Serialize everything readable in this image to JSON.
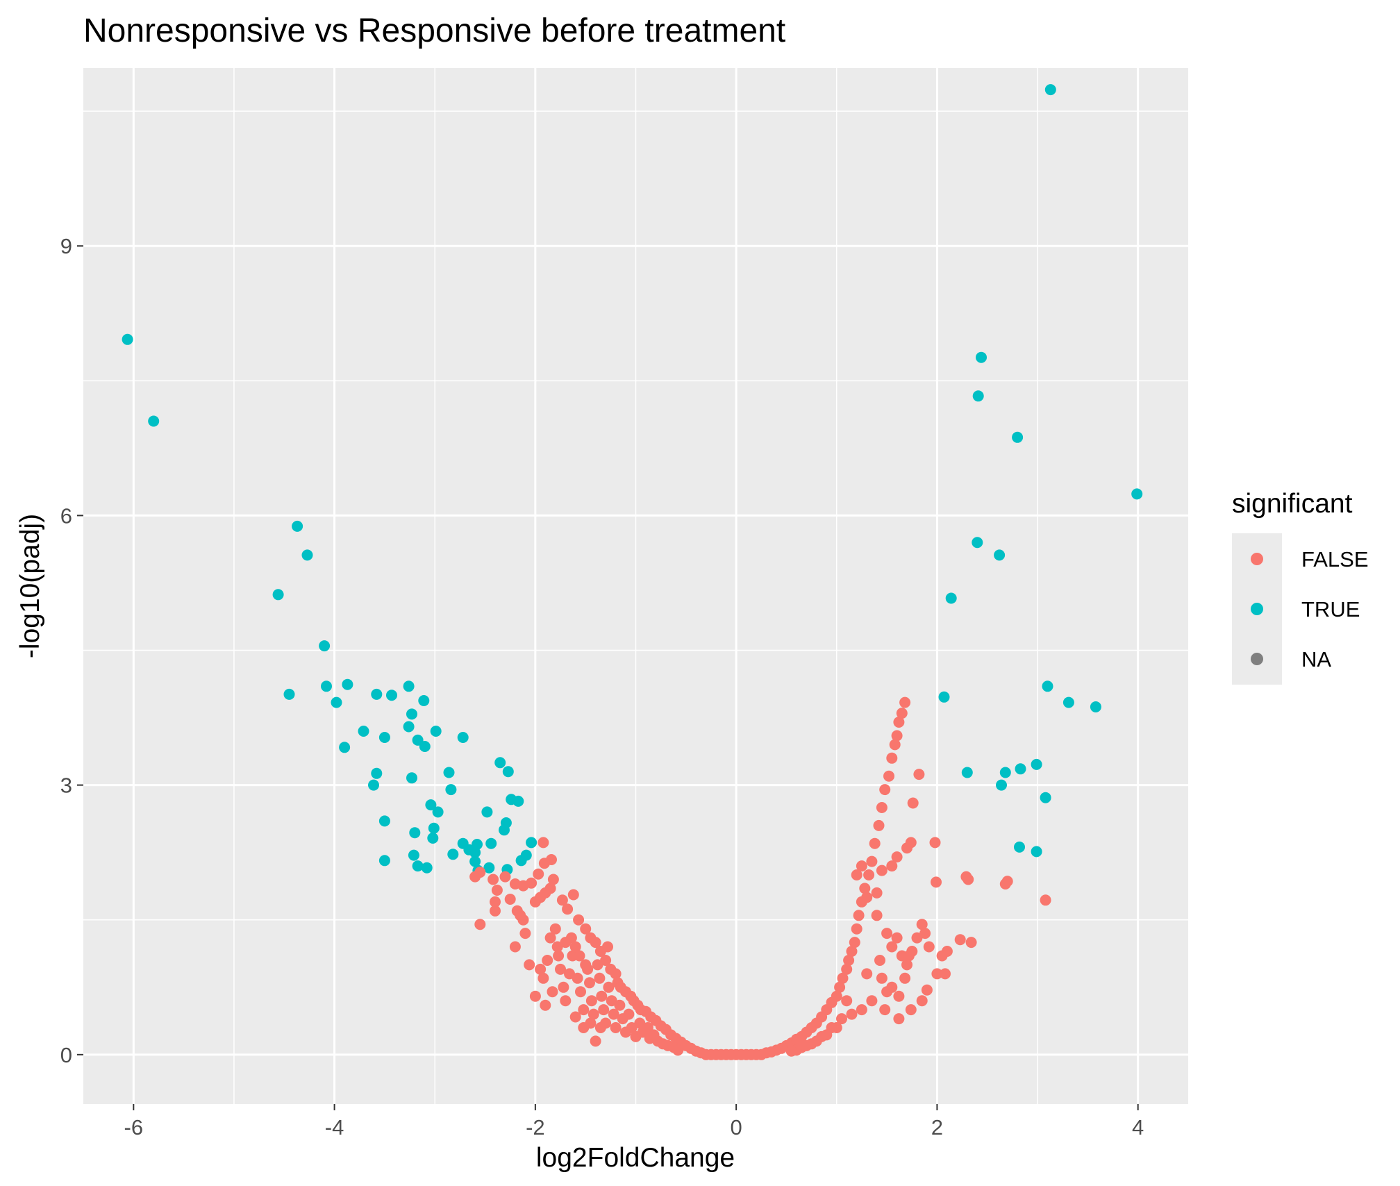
{
  "chart_data": {
    "type": "scatter",
    "title": "Nonresponsive vs Responsive before treatment",
    "xlabel": "log2FoldChange",
    "ylabel": "-log10(padj)",
    "xlim": [
      -6.5,
      4.5
    ],
    "ylim": [
      -0.55,
      10.98
    ],
    "x_ticks": [
      -6,
      -4,
      -2,
      0,
      2,
      4
    ],
    "y_ticks": [
      0,
      3,
      6,
      9
    ],
    "x_tick_labels": [
      "-6",
      "-4",
      "-2",
      "0",
      "2",
      "4"
    ],
    "y_tick_labels": [
      "0",
      "3",
      "6",
      "9"
    ],
    "grid": true,
    "legend": {
      "title": "significant",
      "position": "right",
      "entries": [
        {
          "label": "FALSE",
          "color": "#F8766D"
        },
        {
          "label": "TRUE",
          "color": "#00BFC4"
        },
        {
          "label": "NA",
          "color": "#7F7F7F"
        }
      ]
    },
    "series": [
      {
        "name": "TRUE",
        "color": "#00BFC4",
        "points": [
          [
            -6.06,
            7.96
          ],
          [
            -5.8,
            7.05
          ],
          [
            -4.37,
            5.88
          ],
          [
            -4.27,
            5.56
          ],
          [
            -4.56,
            5.12
          ],
          [
            -4.1,
            4.55
          ],
          [
            -4.08,
            4.1
          ],
          [
            -3.87,
            4.12
          ],
          [
            -3.98,
            3.92
          ],
          [
            -4.45,
            4.01
          ],
          [
            -3.58,
            4.01
          ],
          [
            -3.43,
            4.0
          ],
          [
            -3.26,
            4.1
          ],
          [
            -3.11,
            3.94
          ],
          [
            -3.23,
            3.79
          ],
          [
            -3.26,
            3.65
          ],
          [
            -3.71,
            3.6
          ],
          [
            -3.5,
            3.53
          ],
          [
            -3.17,
            3.5
          ],
          [
            -3.1,
            3.43
          ],
          [
            -2.99,
            3.6
          ],
          [
            -2.72,
            3.53
          ],
          [
            -3.9,
            3.42
          ],
          [
            -3.58,
            3.13
          ],
          [
            -3.23,
            3.08
          ],
          [
            -3.61,
            3.0
          ],
          [
            -2.86,
            3.14
          ],
          [
            -2.84,
            2.95
          ],
          [
            -3.04,
            2.78
          ],
          [
            -2.97,
            2.7
          ],
          [
            -3.5,
            2.6
          ],
          [
            -3.2,
            2.47
          ],
          [
            -3.01,
            2.52
          ],
          [
            -3.02,
            2.41
          ],
          [
            -3.5,
            2.16
          ],
          [
            -3.21,
            2.22
          ],
          [
            -3.17,
            2.1
          ],
          [
            -3.08,
            2.08
          ],
          [
            -2.82,
            2.23
          ],
          [
            -2.72,
            2.35
          ],
          [
            -2.66,
            2.28
          ],
          [
            -2.6,
            2.25
          ],
          [
            -2.58,
            2.34
          ],
          [
            -2.6,
            2.15
          ],
          [
            -2.57,
            2.05
          ],
          [
            -2.46,
            2.08
          ],
          [
            -2.44,
            2.35
          ],
          [
            -2.35,
            3.25
          ],
          [
            -2.27,
            3.15
          ],
          [
            -2.24,
            2.84
          ],
          [
            -2.17,
            2.82
          ],
          [
            -2.48,
            2.7
          ],
          [
            -2.29,
            2.58
          ],
          [
            -2.31,
            2.5
          ],
          [
            -2.14,
            2.16
          ],
          [
            -2.09,
            2.22
          ],
          [
            -2.04,
            2.36
          ],
          [
            -2.28,
            2.06
          ],
          [
            3.13,
            10.74
          ],
          [
            2.44,
            7.76
          ],
          [
            2.41,
            7.33
          ],
          [
            2.8,
            6.87
          ],
          [
            3.99,
            6.24
          ],
          [
            2.4,
            5.7
          ],
          [
            2.62,
            5.56
          ],
          [
            2.14,
            5.08
          ],
          [
            2.07,
            3.98
          ],
          [
            3.1,
            4.1
          ],
          [
            3.31,
            3.92
          ],
          [
            3.58,
            3.87
          ],
          [
            2.3,
            3.14
          ],
          [
            2.68,
            3.14
          ],
          [
            2.83,
            3.18
          ],
          [
            2.99,
            3.23
          ],
          [
            2.64,
            3.0
          ],
          [
            3.08,
            2.86
          ],
          [
            2.82,
            2.31
          ],
          [
            2.99,
            2.26
          ]
        ]
      },
      {
        "name": "FALSE",
        "color": "#F8766D",
        "points": [
          [
            -1.92,
            2.36
          ],
          [
            -1.84,
            2.17
          ],
          [
            -1.91,
            2.13
          ],
          [
            -1.97,
            2.01
          ],
          [
            -2.04,
            1.91
          ],
          [
            -2.12,
            1.88
          ],
          [
            -2.2,
            1.9
          ],
          [
            -2.3,
            1.98
          ],
          [
            -2.38,
            1.83
          ],
          [
            -2.42,
            1.95
          ],
          [
            -2.55,
            2.03
          ],
          [
            -2.6,
            1.98
          ],
          [
            -2.55,
            1.45
          ],
          [
            -2.4,
            1.6
          ],
          [
            -2.4,
            1.7
          ],
          [
            -2.25,
            1.73
          ],
          [
            -2.18,
            1.6
          ],
          [
            -2.12,
            1.5
          ],
          [
            -2.0,
            1.7
          ],
          [
            -1.95,
            1.75
          ],
          [
            -1.9,
            1.8
          ],
          [
            -1.85,
            1.85
          ],
          [
            -1.82,
            1.95
          ],
          [
            -1.73,
            1.72
          ],
          [
            -1.68,
            1.62
          ],
          [
            -1.62,
            1.78
          ],
          [
            -1.57,
            1.5
          ],
          [
            -1.5,
            1.4
          ],
          [
            -1.45,
            1.3
          ],
          [
            -1.4,
            1.25
          ],
          [
            -1.35,
            1.15
          ],
          [
            -1.3,
            1.05
          ],
          [
            -1.28,
            1.2
          ],
          [
            -1.25,
            0.95
          ],
          [
            -1.2,
            0.9
          ],
          [
            -1.18,
            0.8
          ],
          [
            -1.15,
            0.75
          ],
          [
            -1.1,
            0.7
          ],
          [
            -1.05,
            0.65
          ],
          [
            -1.02,
            0.6
          ],
          [
            -0.98,
            0.55
          ],
          [
            -0.95,
            0.5
          ],
          [
            -0.9,
            0.48
          ],
          [
            -0.85,
            0.42
          ],
          [
            -0.8,
            0.38
          ],
          [
            -0.75,
            0.32
          ],
          [
            -0.7,
            0.28
          ],
          [
            -0.65,
            0.22
          ],
          [
            -0.6,
            0.18
          ],
          [
            -0.55,
            0.14
          ],
          [
            -0.5,
            0.1
          ],
          [
            -0.45,
            0.07
          ],
          [
            -0.4,
            0.04
          ],
          [
            -0.35,
            0.02
          ],
          [
            -2.2,
            1.2
          ],
          [
            -2.06,
            1.0
          ],
          [
            -2.0,
            0.65
          ],
          [
            -1.92,
            0.85
          ],
          [
            -1.88,
            1.05
          ],
          [
            -1.85,
            1.3
          ],
          [
            -1.8,
            1.4
          ],
          [
            -1.77,
            1.1
          ],
          [
            -1.75,
            0.95
          ],
          [
            -1.72,
            0.75
          ],
          [
            -1.7,
            0.6
          ],
          [
            -1.66,
            0.9
          ],
          [
            -1.63,
            1.1
          ],
          [
            -1.6,
            1.2
          ],
          [
            -1.58,
            0.85
          ],
          [
            -1.55,
            0.7
          ],
          [
            -1.52,
            0.5
          ],
          [
            -1.48,
            0.95
          ],
          [
            -1.46,
            0.8
          ],
          [
            -1.44,
            0.6
          ],
          [
            -1.42,
            0.45
          ],
          [
            -1.38,
            1.0
          ],
          [
            -1.36,
            0.85
          ],
          [
            -1.34,
            0.65
          ],
          [
            -1.32,
            0.5
          ],
          [
            -1.3,
            0.35
          ],
          [
            -1.27,
            0.75
          ],
          [
            -1.24,
            0.6
          ],
          [
            -1.22,
            0.45
          ],
          [
            -1.2,
            0.3
          ],
          [
            -1.16,
            0.55
          ],
          [
            -1.13,
            0.4
          ],
          [
            -1.1,
            0.25
          ],
          [
            -1.07,
            0.45
          ],
          [
            -1.04,
            0.3
          ],
          [
            -1.0,
            0.2
          ],
          [
            -0.96,
            0.35
          ],
          [
            -0.93,
            0.25
          ],
          [
            -0.88,
            0.3
          ],
          [
            -0.86,
            0.18
          ],
          [
            -0.82,
            0.22
          ],
          [
            -0.78,
            0.15
          ],
          [
            -0.73,
            0.12
          ],
          [
            -0.68,
            0.1
          ],
          [
            -0.62,
            0.08
          ],
          [
            -0.58,
            0.05
          ],
          [
            -1.5,
            1.0
          ],
          [
            -1.56,
            1.1
          ],
          [
            -1.64,
            1.3
          ],
          [
            -1.7,
            1.25
          ],
          [
            -1.78,
            1.2
          ],
          [
            -1.83,
            0.7
          ],
          [
            -1.9,
            0.55
          ],
          [
            -1.95,
            0.95
          ],
          [
            -2.1,
            1.35
          ],
          [
            -2.15,
            1.55
          ],
          [
            -1.45,
            0.35
          ],
          [
            -1.52,
            0.3
          ],
          [
            -1.6,
            0.42
          ],
          [
            -1.4,
            0.15
          ],
          [
            -1.35,
            0.3
          ],
          [
            -0.3,
            0.0
          ],
          [
            -0.25,
            0.0
          ],
          [
            -0.2,
            0.0
          ],
          [
            -0.15,
            0.0
          ],
          [
            -0.1,
            0.0
          ],
          [
            -0.05,
            0.0
          ],
          [
            0.0,
            0.0
          ],
          [
            0.05,
            0.0
          ],
          [
            0.1,
            0.0
          ],
          [
            0.15,
            0.0
          ],
          [
            0.2,
            0.0
          ],
          [
            0.25,
            0.0
          ],
          [
            0.3,
            0.02
          ],
          [
            0.35,
            0.03
          ],
          [
            0.4,
            0.05
          ],
          [
            0.45,
            0.07
          ],
          [
            0.5,
            0.1
          ],
          [
            0.55,
            0.13
          ],
          [
            0.6,
            0.17
          ],
          [
            0.65,
            0.2
          ],
          [
            0.7,
            0.25
          ],
          [
            0.75,
            0.3
          ],
          [
            0.8,
            0.35
          ],
          [
            0.85,
            0.42
          ],
          [
            0.9,
            0.5
          ],
          [
            0.95,
            0.58
          ],
          [
            1.0,
            0.65
          ],
          [
            1.03,
            0.75
          ],
          [
            1.06,
            0.85
          ],
          [
            1.1,
            0.95
          ],
          [
            1.12,
            1.05
          ],
          [
            1.15,
            1.15
          ],
          [
            1.18,
            1.25
          ],
          [
            1.2,
            1.4
          ],
          [
            1.22,
            1.55
          ],
          [
            1.25,
            1.7
          ],
          [
            1.28,
            1.85
          ],
          [
            1.32,
            2.0
          ],
          [
            1.35,
            2.15
          ],
          [
            1.38,
            2.35
          ],
          [
            1.42,
            2.55
          ],
          [
            1.45,
            2.75
          ],
          [
            1.48,
            2.95
          ],
          [
            1.52,
            3.1
          ],
          [
            1.55,
            3.3
          ],
          [
            1.58,
            3.45
          ],
          [
            1.6,
            3.55
          ],
          [
            1.62,
            3.7
          ],
          [
            1.65,
            3.8
          ],
          [
            1.68,
            3.92
          ],
          [
            1.2,
            2.0
          ],
          [
            1.25,
            2.1
          ],
          [
            1.3,
            1.75
          ],
          [
            1.4,
            1.8
          ],
          [
            1.45,
            2.05
          ],
          [
            1.55,
            2.1
          ],
          [
            1.6,
            2.2
          ],
          [
            1.7,
            2.3
          ],
          [
            1.76,
            2.8
          ],
          [
            1.82,
            3.12
          ],
          [
            1.74,
            2.36
          ],
          [
            1.98,
            2.36
          ],
          [
            1.99,
            1.92
          ],
          [
            2.29,
            1.98
          ],
          [
            2.31,
            1.95
          ],
          [
            2.7,
            1.93
          ],
          [
            2.68,
            1.9
          ],
          [
            3.08,
            1.72
          ],
          [
            1.4,
            1.55
          ],
          [
            1.5,
            1.35
          ],
          [
            1.55,
            1.2
          ],
          [
            1.6,
            1.3
          ],
          [
            1.65,
            1.1
          ],
          [
            1.7,
            1.0
          ],
          [
            1.75,
            1.15
          ],
          [
            1.8,
            1.3
          ],
          [
            1.85,
            1.45
          ],
          [
            1.88,
            1.35
          ],
          [
            1.92,
            1.2
          ],
          [
            2.0,
            0.9
          ],
          [
            2.05,
            1.1
          ],
          [
            2.08,
            0.9
          ],
          [
            2.1,
            1.15
          ],
          [
            2.23,
            1.28
          ],
          [
            2.34,
            1.25
          ],
          [
            1.85,
            0.6
          ],
          [
            1.9,
            0.72
          ],
          [
            1.74,
            0.5
          ],
          [
            1.62,
            0.4
          ],
          [
            1.5,
            0.7
          ],
          [
            1.45,
            0.85
          ],
          [
            1.35,
            0.6
          ],
          [
            1.3,
            0.9
          ],
          [
            1.25,
            0.5
          ],
          [
            1.15,
            0.45
          ],
          [
            1.1,
            0.6
          ],
          [
            1.05,
            0.4
          ],
          [
            1.0,
            0.3
          ],
          [
            0.95,
            0.3
          ],
          [
            0.9,
            0.22
          ],
          [
            0.85,
            0.2
          ],
          [
            0.8,
            0.15
          ],
          [
            0.75,
            0.12
          ],
          [
            0.7,
            0.1
          ],
          [
            0.65,
            0.08
          ],
          [
            0.6,
            0.05
          ],
          [
            0.55,
            0.04
          ],
          [
            1.43,
            1.05
          ],
          [
            1.48,
            0.5
          ],
          [
            1.55,
            0.75
          ],
          [
            1.62,
            0.65
          ],
          [
            1.68,
            0.85
          ],
          [
            1.72,
            1.1
          ]
        ]
      }
    ]
  }
}
